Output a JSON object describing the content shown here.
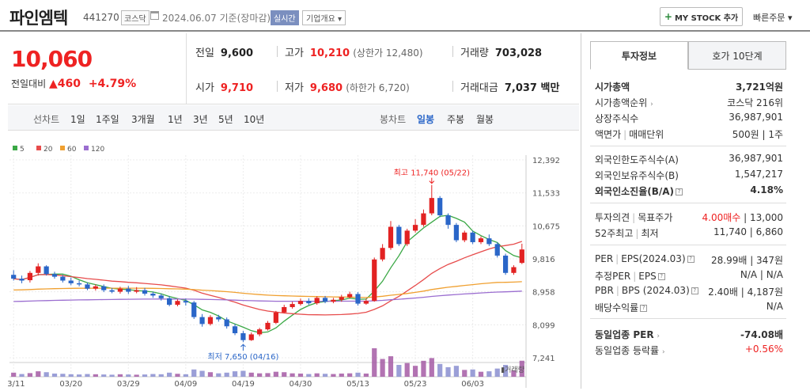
{
  "header": {
    "name": "파인엠텍",
    "code": "441270",
    "market": "코스닥",
    "date": "2024.06.07 기준(장마감)",
    "realtime": "실시간",
    "overview": "기업개요 ▾",
    "mystock": "MY STOCK 추가",
    "quick_order": "빠른주문 ▾"
  },
  "price": {
    "current": "10,060",
    "change_label": "전일대비",
    "change": "▲460",
    "change_pct": "+4.79%"
  },
  "grid": {
    "prev_close_label": "전일",
    "prev_close": "9,600",
    "high_label": "고가",
    "high": "10,210",
    "upper_limit": "(상한가 12,480)",
    "volume_label": "거래량",
    "volume": "703,028",
    "open_label": "시가",
    "open": "9,710",
    "low_label": "저가",
    "low": "9,680",
    "lower_limit": "(하한가 6,720)",
    "trade_value_label": "거래대금",
    "trade_value": "7,037 백만"
  },
  "period_bar": {
    "line_label": "선차트",
    "line_periods": [
      "1일",
      "1주일",
      "3개월",
      "1년",
      "3년",
      "5년",
      "10년"
    ],
    "candle_label": "봉차트",
    "candle_periods": [
      "일봉",
      "주봉",
      "월봉"
    ]
  },
  "chart_data": {
    "type": "candlestick",
    "legend": [
      "5",
      "20",
      "60",
      "120"
    ],
    "legend_colors": [
      "#3aa845",
      "#e74c4c",
      "#f0a030",
      "#9b6ed0"
    ],
    "up_color": "#e22222",
    "down_color": "#2a66c8",
    "y_ticks": [
      "12,392",
      "11,533",
      "10,675",
      "9,816",
      "8,958",
      "8,099",
      "7,241"
    ],
    "y_tick_values": [
      12392,
      11533,
      10675,
      9816,
      8958,
      8099,
      7241
    ],
    "x_ticks": [
      "03/11",
      "03/20",
      "03/29",
      "04/09",
      "04/19",
      "04/30",
      "05/13",
      "05/23",
      "06/03"
    ],
    "x_tick_index": [
      0,
      7,
      14,
      21,
      28,
      35,
      42,
      49,
      56
    ],
    "high_annotation": "최고 11,740 (05/22)",
    "low_annotation": "최저 7,650 (04/16)",
    "volume_label": "거래량",
    "candles": [
      [
        9400,
        9300,
        9520,
        9250
      ],
      [
        9300,
        9250,
        9380,
        9180
      ],
      [
        9260,
        9450,
        9500,
        9200
      ],
      [
        9450,
        9620,
        9700,
        9380
      ],
      [
        9620,
        9420,
        9650,
        9380
      ],
      [
        9420,
        9350,
        9480,
        9300
      ],
      [
        9350,
        9250,
        9400,
        9200
      ],
      [
        9250,
        9180,
        9330,
        9130
      ],
      [
        9180,
        9150,
        9250,
        9100
      ],
      [
        9150,
        9040,
        9200,
        9000
      ],
      [
        9040,
        9100,
        9150,
        8990
      ],
      [
        9100,
        9000,
        9150,
        8950
      ],
      [
        9000,
        8960,
        9060,
        8920
      ],
      [
        8960,
        9040,
        9090,
        8910
      ],
      [
        9040,
        8960,
        9110,
        8900
      ],
      [
        8960,
        9000,
        9080,
        8920
      ],
      [
        9000,
        8910,
        9060,
        8860
      ],
      [
        8910,
        8860,
        8960,
        8800
      ],
      [
        8860,
        8790,
        8910,
        8730
      ],
      [
        8790,
        8620,
        8850,
        8580
      ],
      [
        8620,
        8720,
        8760,
        8580
      ],
      [
        8720,
        8680,
        8780,
        8600
      ],
      [
        8680,
        8300,
        8720,
        8250
      ],
      [
        8300,
        8120,
        8380,
        8050
      ],
      [
        8120,
        8300,
        8350,
        8080
      ],
      [
        8300,
        8240,
        8360,
        8180
      ],
      [
        8240,
        8060,
        8290,
        8000
      ],
      [
        8060,
        7880,
        8120,
        7830
      ],
      [
        7880,
        7700,
        7940,
        7650
      ],
      [
        7700,
        7850,
        7900,
        7680
      ],
      [
        7850,
        7980,
        8020,
        7800
      ],
      [
        7980,
        8150,
        8200,
        7950
      ],
      [
        8150,
        8420,
        8460,
        8120
      ],
      [
        8420,
        8560,
        8620,
        8400
      ],
      [
        8560,
        8640,
        8700,
        8520
      ],
      [
        8640,
        8720,
        8780,
        8600
      ],
      [
        8720,
        8660,
        8790,
        8620
      ],
      [
        8660,
        8800,
        8840,
        8620
      ],
      [
        8800,
        8700,
        8850,
        8660
      ],
      [
        8700,
        8750,
        8800,
        8660
      ],
      [
        8750,
        8820,
        8880,
        8700
      ],
      [
        8820,
        8900,
        8960,
        8780
      ],
      [
        8900,
        8650,
        8950,
        8600
      ],
      [
        8650,
        8720,
        8780,
        8620
      ],
      [
        8720,
        9800,
        9850,
        8700
      ],
      [
        9800,
        10100,
        10200,
        9750
      ],
      [
        10100,
        10650,
        10800,
        10050
      ],
      [
        10650,
        10200,
        10700,
        10150
      ],
      [
        10200,
        10550,
        10600,
        10150
      ],
      [
        10550,
        10700,
        10850,
        10500
      ],
      [
        10700,
        11000,
        11100,
        10650
      ],
      [
        11000,
        11400,
        11740,
        10950
      ],
      [
        11400,
        10950,
        11450,
        10900
      ],
      [
        10950,
        10700,
        11000,
        10600
      ],
      [
        10700,
        10300,
        10750,
        10250
      ],
      [
        10300,
        10500,
        10550,
        10250
      ],
      [
        10500,
        10250,
        10550,
        10200
      ],
      [
        10250,
        10350,
        10400,
        10200
      ],
      [
        10350,
        10200,
        10450,
        10150
      ],
      [
        10200,
        9900,
        10250,
        9850
      ],
      [
        9900,
        9450,
        9950,
        9400
      ],
      [
        9450,
        9600,
        9650,
        9400
      ],
      [
        9710,
        10060,
        10210,
        9680
      ]
    ],
    "volumes": [
      [
        180000,
        true
      ],
      [
        120000,
        false
      ],
      [
        160000,
        true
      ],
      [
        240000,
        true
      ],
      [
        200000,
        false
      ],
      [
        140000,
        false
      ],
      [
        130000,
        false
      ],
      [
        110000,
        false
      ],
      [
        100000,
        false
      ],
      [
        120000,
        false
      ],
      [
        110000,
        true
      ],
      [
        100000,
        false
      ],
      [
        90000,
        false
      ],
      [
        110000,
        true
      ],
      [
        100000,
        false
      ],
      [
        90000,
        true
      ],
      [
        100000,
        false
      ],
      [
        120000,
        false
      ],
      [
        110000,
        false
      ],
      [
        180000,
        false
      ],
      [
        130000,
        true
      ],
      [
        110000,
        false
      ],
      [
        320000,
        false
      ],
      [
        260000,
        false
      ],
      [
        200000,
        true
      ],
      [
        150000,
        false
      ],
      [
        180000,
        false
      ],
      [
        240000,
        false
      ],
      [
        260000,
        false
      ],
      [
        180000,
        true
      ],
      [
        150000,
        true
      ],
      [
        160000,
        true
      ],
      [
        220000,
        true
      ],
      [
        200000,
        true
      ],
      [
        150000,
        true
      ],
      [
        140000,
        true
      ],
      [
        120000,
        false
      ],
      [
        150000,
        true
      ],
      [
        130000,
        false
      ],
      [
        120000,
        true
      ],
      [
        140000,
        true
      ],
      [
        150000,
        true
      ],
      [
        180000,
        false
      ],
      [
        140000,
        true
      ],
      [
        1250000,
        true
      ],
      [
        780000,
        true
      ],
      [
        900000,
        true
      ],
      [
        520000,
        false
      ],
      [
        600000,
        true
      ],
      [
        480000,
        true
      ],
      [
        700000,
        true
      ],
      [
        820000,
        true
      ],
      [
        560000,
        false
      ],
      [
        420000,
        false
      ],
      [
        480000,
        false
      ],
      [
        300000,
        true
      ],
      [
        320000,
        false
      ],
      [
        220000,
        true
      ],
      [
        240000,
        false
      ],
      [
        360000,
        false
      ],
      [
        520000,
        false
      ],
      [
        280000,
        true
      ],
      [
        703028,
        true
      ]
    ],
    "ylim": [
      7241,
      12392
    ]
  },
  "info": {
    "tab_invest": "투자정보",
    "tab_ask": "호가 10단계",
    "market_cap_label": "시가총액",
    "market_cap": "3,721억원",
    "market_cap_rank_label": "시가총액순위",
    "market_cap_rank": "코스닥 216위",
    "shares_label": "상장주식수",
    "shares": "36,987,901",
    "par_label": "액면가",
    "unit_label": "매매단위",
    "par_unit": "500원 | 1주",
    "foreign_limit_label": "외국인한도주식수(A)",
    "foreign_limit": "36,987,901",
    "foreign_hold_label": "외국인보유주식수(B)",
    "foreign_hold": "1,547,217",
    "foreign_ratio_label": "외국인소진율(B/A)",
    "foreign_ratio": "4.18%",
    "opinion_label": "투자의견",
    "target_label": "목표주가",
    "opinion": "4.00매수",
    "target": "| 13,000",
    "w52_label": "52주최고",
    "w52_low_label": "최저",
    "w52": "11,740 | 6,860",
    "per_label": "PER",
    "eps_label": "EPS(2024.03)",
    "per_eps": "28.99배 | 347원",
    "est_per_label": "추정PER",
    "est_eps_label": "EPS",
    "est_per_eps": "N/A | N/A",
    "pbr_label": "PBR",
    "bps_label": "BPS (2024.03)",
    "pbr_bps": "2.40배 | 4,187원",
    "div_label": "배당수익률",
    "div": "N/A",
    "ind_per_label": "동일업종 PER",
    "ind_per": "-74.08배",
    "ind_rate_label": "동일업종 등락률",
    "ind_rate": "+0.56%"
  }
}
